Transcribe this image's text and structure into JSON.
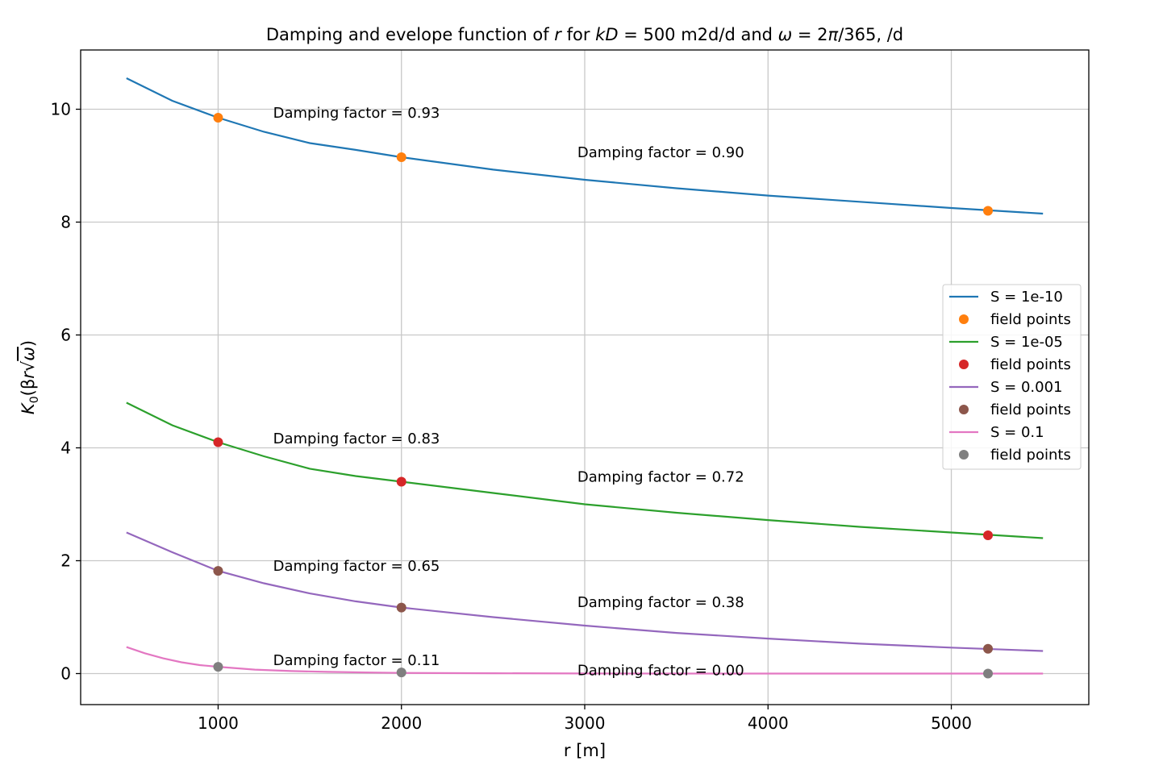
{
  "chart_data": {
    "type": "line",
    "title": "Damping and evelope function of r for kD = 500 m2d/d and ω = 2π/365, /d",
    "title_parts": {
      "a": "Damping and evelope function of ",
      "b": "r",
      "c": " for ",
      "d": "kD",
      "e": " =  500 m2d/d and ",
      "f": "ω",
      "g": " = 2",
      "h": "π",
      "i": "/365, /d"
    },
    "xlabel": "r [m]",
    "ylabel": "K0(βr√ω)",
    "ylabel_parts": {
      "a": "K",
      "b": "0",
      "c": "(β",
      "d": "r",
      "e": "√",
      "f": "ω",
      "g": ")"
    },
    "xlim": [
      250,
      5750
    ],
    "ylim": [
      -0.55,
      11.05
    ],
    "xticks": [
      1000,
      2000,
      3000,
      4000,
      5000
    ],
    "xtick_labels": [
      "1000",
      "2000",
      "3000",
      "4000",
      "5000"
    ],
    "yticks": [
      0,
      2,
      4,
      6,
      8,
      10
    ],
    "ytick_labels": [
      "0",
      "2",
      "4",
      "6",
      "8",
      "10"
    ],
    "grid": true,
    "legend_position": "center-right",
    "field_x": [
      1000,
      2000,
      5200
    ],
    "series": [
      {
        "name": "S = 1e-10",
        "color": "#1f77b4",
        "point_color": "#ff7f0e",
        "points_label": "field points",
        "x": [
          500,
          750,
          1000,
          1250,
          1500,
          1750,
          2000,
          2500,
          3000,
          3500,
          4000,
          4500,
          5000,
          5500
        ],
        "y": [
          10.55,
          10.15,
          9.85,
          9.6,
          9.4,
          9.28,
          9.15,
          8.93,
          8.75,
          8.6,
          8.47,
          8.36,
          8.25,
          8.15
        ],
        "points_y": [
          9.85,
          9.15,
          8.2
        ]
      },
      {
        "name": "S = 1e-05",
        "color": "#2ca02c",
        "point_color": "#d62728",
        "points_label": "field points",
        "x": [
          500,
          750,
          1000,
          1250,
          1500,
          1750,
          2000,
          2500,
          3000,
          3500,
          4000,
          4500,
          5000,
          5500
        ],
        "y": [
          4.8,
          4.4,
          4.1,
          3.85,
          3.63,
          3.5,
          3.4,
          3.2,
          3.0,
          2.85,
          2.72,
          2.6,
          2.5,
          2.4
        ],
        "points_y": [
          4.1,
          3.4,
          2.45
        ]
      },
      {
        "name": "S = 0.001",
        "color": "#9467bd",
        "point_color": "#8c564b",
        "points_label": "field points",
        "x": [
          500,
          750,
          1000,
          1250,
          1500,
          1750,
          2000,
          2500,
          3000,
          3500,
          4000,
          4500,
          5000,
          5500
        ],
        "y": [
          2.5,
          2.15,
          1.82,
          1.6,
          1.42,
          1.28,
          1.17,
          1.0,
          0.85,
          0.72,
          0.62,
          0.53,
          0.46,
          0.4
        ],
        "points_y": [
          1.82,
          1.17,
          0.44
        ]
      },
      {
        "name": "S = 0.1",
        "color": "#e377c2",
        "point_color": "#7f7f7f",
        "points_label": "field points",
        "x": [
          500,
          600,
          700,
          800,
          900,
          1000,
          1200,
          1400,
          1600,
          1800,
          2000,
          2500,
          3000,
          4000,
          5000,
          5500
        ],
        "y": [
          0.47,
          0.36,
          0.27,
          0.2,
          0.15,
          0.12,
          0.07,
          0.045,
          0.03,
          0.02,
          0.012,
          0.005,
          0.002,
          0.0,
          0.0,
          0.0
        ],
        "points_y": [
          0.12,
          0.02,
          0.0
        ]
      }
    ],
    "annotations": [
      {
        "text": "Damping factor = 0.93",
        "x": 1300,
        "y": 9.95
      },
      {
        "text": "Damping factor = 0.90",
        "x": 2960,
        "y": 9.25
      },
      {
        "text": "Damping factor = 0.83",
        "x": 1300,
        "y": 4.18
      },
      {
        "text": "Damping factor = 0.72",
        "x": 2960,
        "y": 3.5
      },
      {
        "text": "Damping factor = 0.65",
        "x": 1300,
        "y": 1.92
      },
      {
        "text": "Damping factor = 0.38",
        "x": 2960,
        "y": 1.28
      },
      {
        "text": "Damping factor = 0.11",
        "x": 1300,
        "y": 0.25
      },
      {
        "text": "Damping factor = 0.00",
        "x": 2960,
        "y": 0.07
      }
    ]
  }
}
